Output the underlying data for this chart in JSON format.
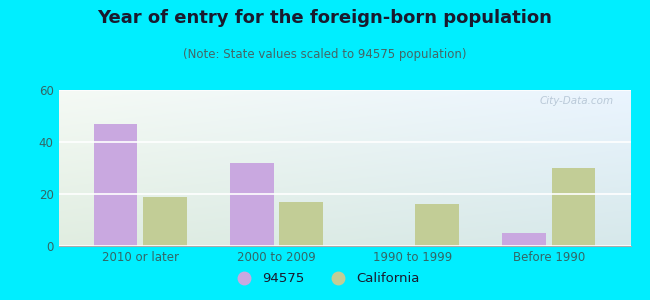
{
  "title": "Year of entry for the foreign-born population",
  "subtitle": "(Note: State values scaled to 94575 population)",
  "categories": [
    "2010 or later",
    "2000 to 2009",
    "1990 to 1999",
    "Before 1990"
  ],
  "values_94575": [
    47,
    32,
    0,
    5
  ],
  "values_california": [
    19,
    17,
    16,
    30
  ],
  "bar_color_94575": "#c9a8e0",
  "bar_color_california": "#c2cd96",
  "background_outer": "#00eeff",
  "ylim": [
    0,
    60
  ],
  "yticks": [
    0,
    20,
    40,
    60
  ],
  "legend_label_1": "94575",
  "legend_label_2": "California",
  "bar_width": 0.32,
  "title_fontsize": 13,
  "subtitle_fontsize": 8.5,
  "watermark": "City-Data.com"
}
